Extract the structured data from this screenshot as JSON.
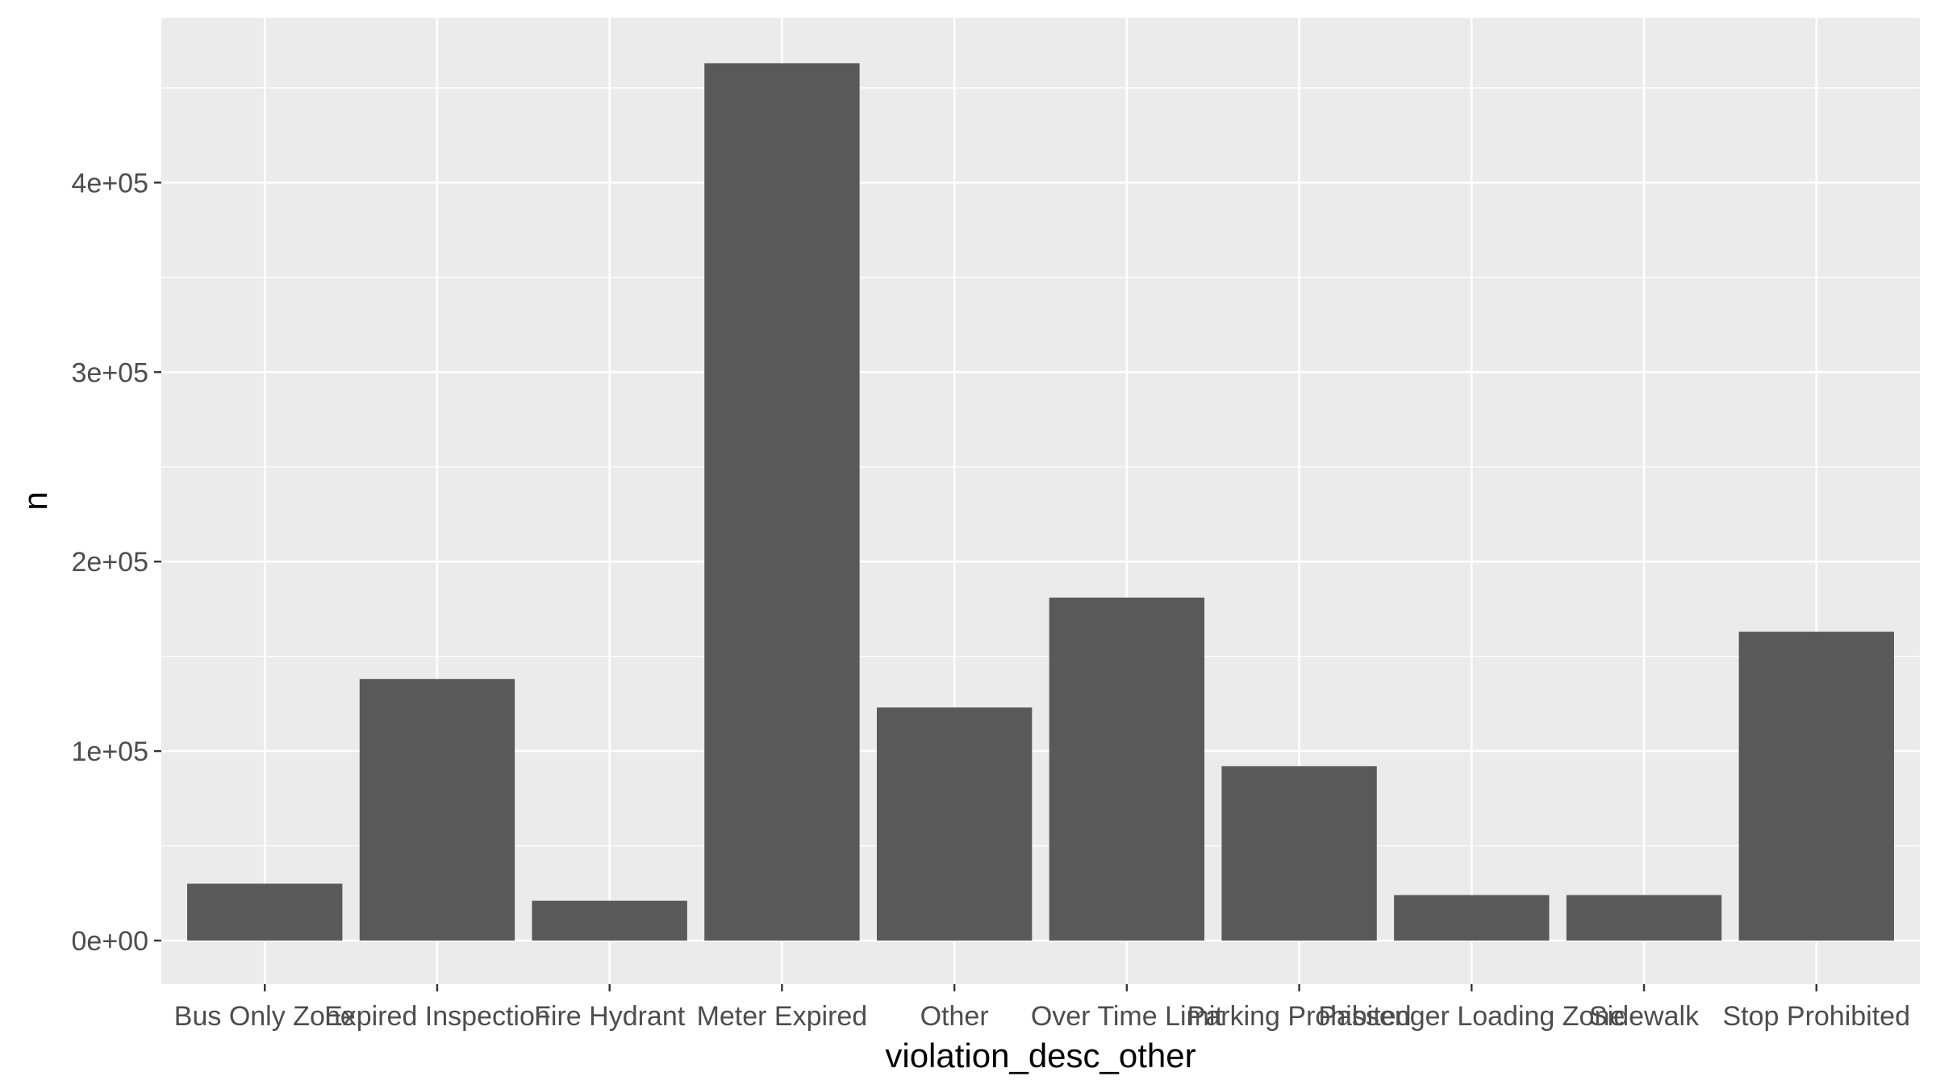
{
  "chart_data": {
    "type": "bar",
    "categories": [
      "Bus Only Zone",
      "Expired Inspection",
      "Fire Hydrant",
      "Meter Expired",
      "Other",
      "Over Time Limit",
      "Parking Prohibited",
      "Passenger Loading Zone",
      "Sidewalk",
      "Stop Prohibited"
    ],
    "values": [
      30000,
      138000,
      21000,
      463000,
      123000,
      181000,
      92000,
      24000,
      24000,
      163000
    ],
    "xlabel": "violation_desc_other",
    "ylabel": "n",
    "ylim": [
      -23000,
      487000
    ],
    "yticks": [
      0,
      100000,
      200000,
      300000,
      400000
    ],
    "ytick_labels": [
      "0e+00",
      "1e+05",
      "2e+05",
      "3e+05",
      "4e+05"
    ],
    "grid": true,
    "colors": {
      "panel_background": "#ebebeb",
      "grid_major": "#ffffff",
      "bar_fill": "#595959",
      "tick_color": "#333333",
      "tick_label_color": "#4d4d4d",
      "axis_title_color": "#000000"
    }
  }
}
